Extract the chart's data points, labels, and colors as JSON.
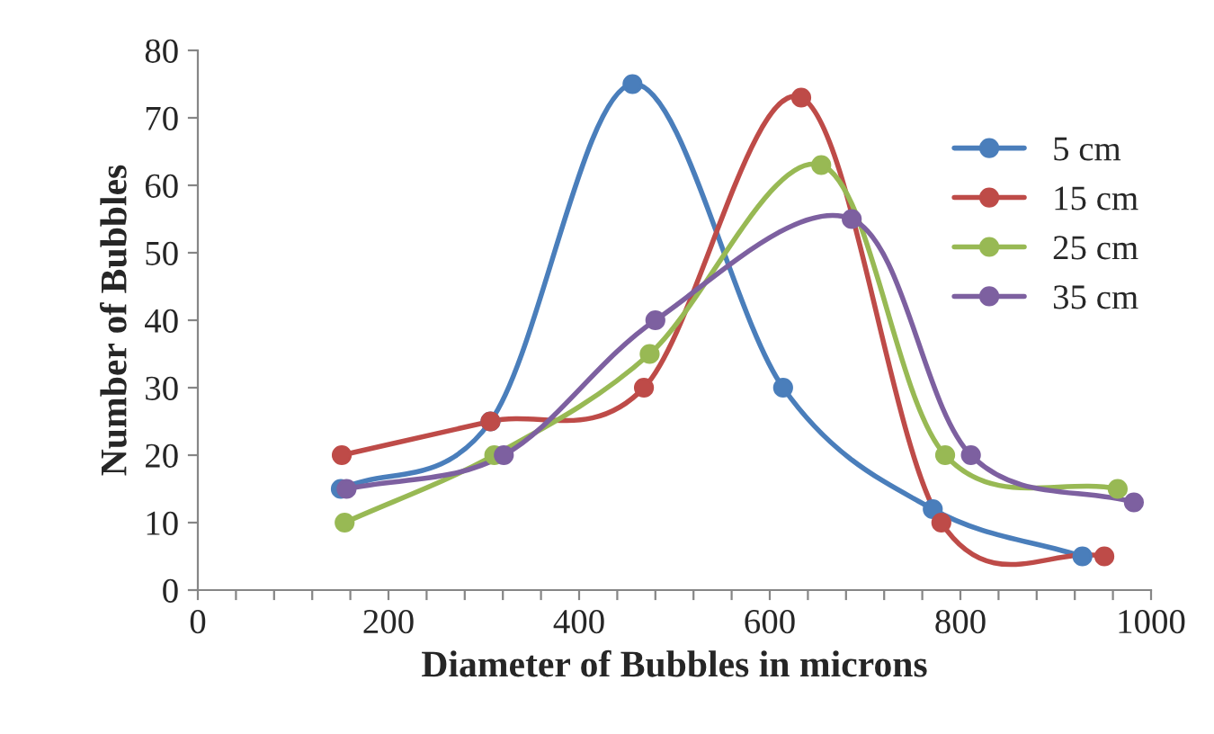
{
  "chart_data": {
    "type": "line",
    "xlabel": "Diameter of Bubbles in microns",
    "ylabel": "Number of Bubbles",
    "xlim": [
      0,
      1000
    ],
    "ylim": [
      0,
      80
    ],
    "xticks": [
      0,
      {
        "value": 40,
        "label": null
      },
      {
        "value": 80,
        "label": null
      },
      {
        "value": 120,
        "label": null
      },
      {
        "value": 160,
        "label": null
      },
      200,
      {
        "value": 240,
        "label": null
      },
      {
        "value": 280,
        "label": null
      },
      {
        "value": 320,
        "label": null
      },
      {
        "value": 360,
        "label": null
      },
      400,
      {
        "value": 440,
        "label": null
      },
      {
        "value": 480,
        "label": null
      },
      {
        "value": 520,
        "label": null
      },
      {
        "value": 560,
        "label": null
      },
      600,
      {
        "value": 640,
        "label": null
      },
      {
        "value": 680,
        "label": null
      },
      {
        "value": 720,
        "label": null
      },
      {
        "value": 760,
        "label": null
      },
      800,
      {
        "value": 840,
        "label": null
      },
      {
        "value": 880,
        "label": null
      },
      {
        "value": 920,
        "label": null
      },
      {
        "value": 960,
        "label": null
      },
      1000
    ],
    "yticks": [
      0,
      10,
      20,
      30,
      40,
      50,
      60,
      70,
      80
    ],
    "grid": false,
    "legend": "right",
    "marker": "circle",
    "line_style": "solid",
    "series": [
      {
        "name": "5 cm",
        "color": "#4a7ebb",
        "x": [
          150,
          307,
          456,
          614,
          771,
          928
        ],
        "values": [
          15,
          25,
          75,
          30,
          12,
          5
        ]
      },
      {
        "name": "15 cm",
        "color": "#be4b48",
        "x": [
          151,
          307,
          468,
          633,
          780,
          951
        ],
        "values": [
          20,
          25,
          30,
          73,
          10,
          5
        ]
      },
      {
        "name": "25 cm",
        "color": "#98b954",
        "x": [
          154,
          311,
          474,
          654,
          784,
          965
        ],
        "values": [
          10,
          20,
          35,
          63,
          20,
          15
        ]
      },
      {
        "name": "35 cm",
        "color": "#7d60a0",
        "x": [
          156,
          321,
          480,
          686,
          811,
          982
        ],
        "values": [
          15,
          20,
          40,
          55,
          20,
          13
        ]
      }
    ]
  }
}
